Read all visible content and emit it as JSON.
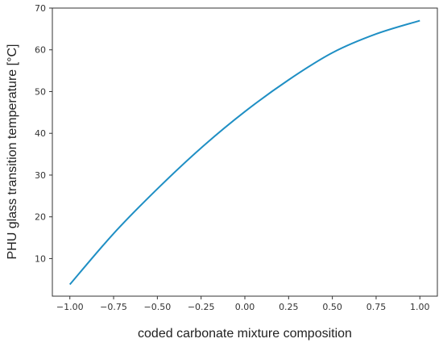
{
  "chart_data": {
    "type": "line",
    "title": "",
    "xlabel": "coded carbonate mixture composition",
    "ylabel": "PHU glass transition temperature [°C]",
    "xlim": [
      -1.1,
      1.1
    ],
    "ylim": [
      1,
      70
    ],
    "grid": false,
    "x_ticks": [
      -1.0,
      -0.75,
      -0.5,
      -0.25,
      0.0,
      0.25,
      0.5,
      0.75,
      1.0
    ],
    "x_tick_labels": [
      "−1.00",
      "−0.75",
      "−0.50",
      "−0.25",
      "0.00",
      "0.25",
      "0.50",
      "0.75",
      "1.00"
    ],
    "y_ticks": [
      10,
      20,
      30,
      40,
      50,
      60,
      70
    ],
    "y_tick_labels": [
      "10",
      "20",
      "30",
      "40",
      "50",
      "60",
      "70"
    ],
    "series": [
      {
        "color": "#1f8fc4",
        "x": [
          -1.0,
          -0.75,
          -0.5,
          -0.25,
          0.0,
          0.25,
          0.5,
          0.75,
          1.0
        ],
        "y": [
          3.8,
          16.0,
          26.7,
          36.5,
          45.2,
          52.8,
          59.3,
          63.8,
          67.0
        ]
      }
    ]
  }
}
